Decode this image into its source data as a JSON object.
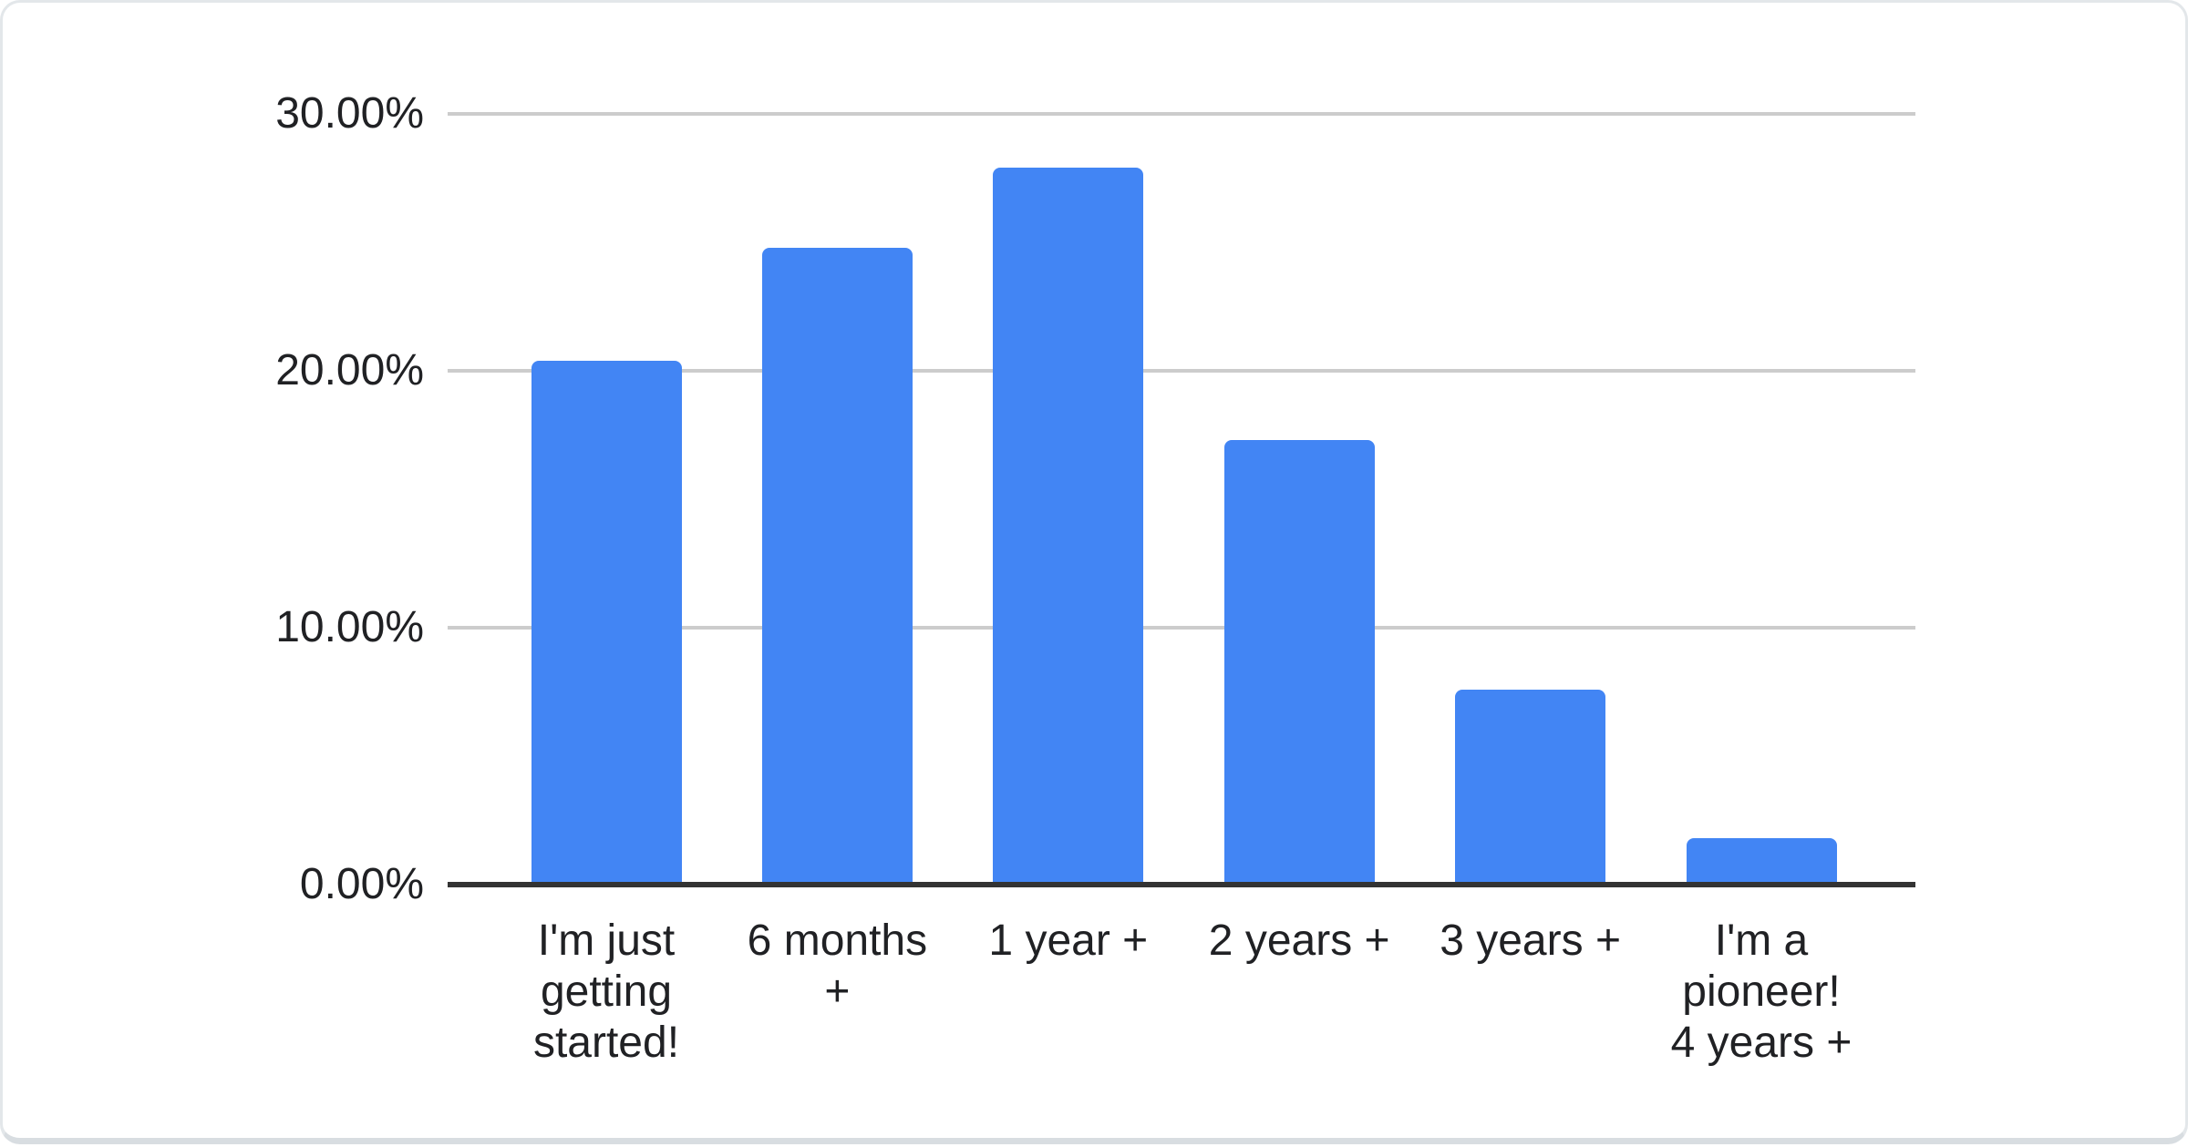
{
  "chart_data": {
    "type": "bar",
    "title": "",
    "categories": [
      "I'm just getting started!",
      "6 months +",
      "1 year +",
      "2 years +",
      "3 years +",
      "I'm a pioneer! 4 years +"
    ],
    "values": [
      20.4,
      24.8,
      27.9,
      17.3,
      7.6,
      1.8
    ],
    "value_unit": "percent",
    "y_ticks": [
      {
        "label": "0.00%",
        "value": 0
      },
      {
        "label": "10.00%",
        "value": 10
      },
      {
        "label": "20.00%",
        "value": 20
      },
      {
        "label": "30.00%",
        "value": 30
      }
    ],
    "ylim": [
      0,
      30
    ],
    "xlabel": "",
    "ylabel": "",
    "grid": true,
    "legend": "none",
    "colors": {
      "bar": "#4285f4",
      "gridline": "#cccccc",
      "axis_line": "#333333",
      "label_text": "#202124",
      "card_background": "#ffffff",
      "card_border": "#dadfe3"
    }
  }
}
